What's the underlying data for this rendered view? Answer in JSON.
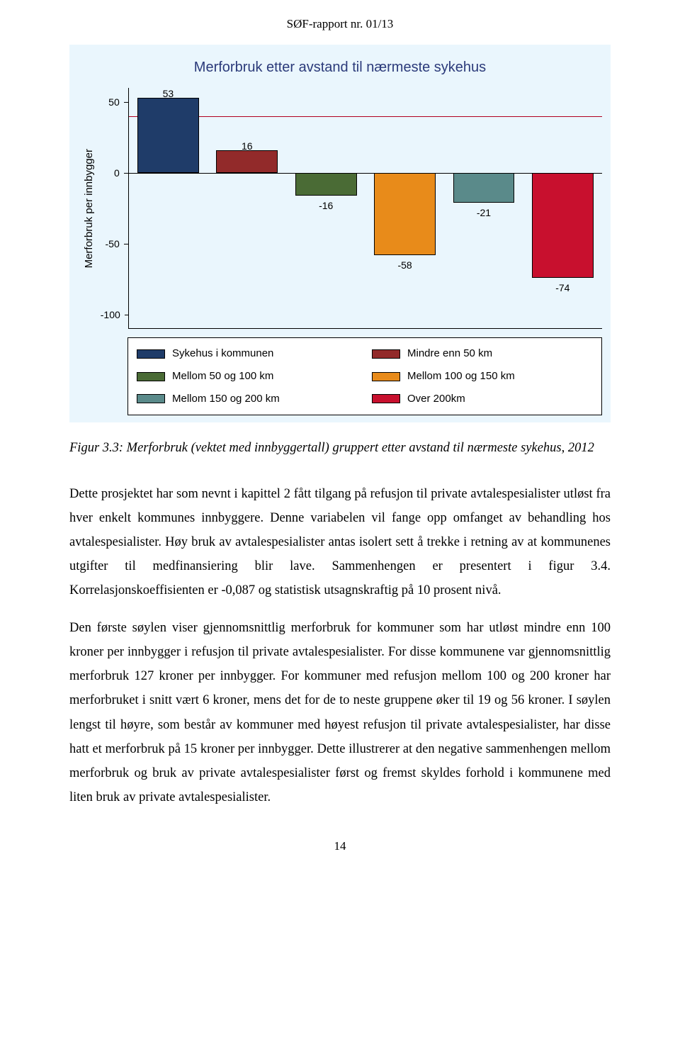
{
  "doc_header": "SØF-rapport nr. 01/13",
  "page_number": "14",
  "chart": {
    "type": "bar",
    "title": "Merforbruk etter avstand til nærmeste sykehus",
    "y_label": "Merforbruk per innbygger",
    "background_color": "#eaf6fd",
    "title_color": "#2b3a7a",
    "title_fontsize": 20,
    "axis_font_family": "Arial",
    "axis_fontsize": 14,
    "ylim": [
      -110,
      60
    ],
    "yticks": [
      -100,
      -50,
      0,
      50
    ],
    "zero_color": "#000000",
    "reference_line_value": 40,
    "reference_line_color": "#b00020",
    "axis_color": "#000000",
    "categories": [
      "Sykehus i kommunen",
      "Mindre enn 50 km",
      "Mellom 50 og 100 km",
      "Mellom 100 og 150 km",
      "Mellom 150 og 200 km",
      "Over 200km"
    ],
    "values": [
      53,
      16,
      -16,
      -58,
      -21,
      -74
    ],
    "colors": [
      "#1f3c69",
      "#922a2a",
      "#4a6b35",
      "#e88b1a",
      "#5a8a8a",
      "#c8102e"
    ],
    "value_labels": [
      "53",
      "16",
      "-16",
      "-58",
      "-21",
      "-74"
    ],
    "bar_gap_ratio": 0.22,
    "bar_border_color": "#000000",
    "label_fontsize": 14,
    "legend_border_color": "#000000",
    "legend_bg": "#ffffff"
  },
  "caption": "Figur 3.3: Merforbruk (vektet med innbyggertall) gruppert etter avstand til nærmeste sykehus, 2012",
  "paragraphs": [
    "Dette prosjektet har som nevnt i kapittel 2 fått tilgang på refusjon til private avtalespesialister utløst fra hver enkelt kommunes innbyggere. Denne variabelen vil fange opp omfanget av behandling hos avtalespesialister. Høy bruk av avtalespesialister antas isolert sett å trekke i retning av at kommunenes utgifter til medfinansiering blir lave. Sammenhengen er presentert i figur 3.4. Korrelasjonskoeffisienten er -0,087 og statistisk utsagnskraftig på 10 prosent nivå.",
    "Den første søylen viser gjennomsnittlig merforbruk for kommuner som har utløst mindre enn 100 kroner per innbygger i refusjon til private avtalespesialister. For disse kommunene var gjennomsnittlig merforbruk 127 kroner per innbygger. For kommuner med refusjon mellom 100 og 200 kroner har merforbruket i snitt vært 6 kroner, mens det for de to neste gruppene øker til 19 og 56 kroner. I søylen lengst til høyre, som består av kommuner med høyest refusjon til private avtalespesialister, har disse hatt et merforbruk på 15 kroner per innbygger. Dette illustrerer at den negative sammenhengen mellom merforbruk og bruk av private avtalespesialister først og fremst skyldes forhold i kommunene med liten bruk av private avtalespesialister."
  ]
}
